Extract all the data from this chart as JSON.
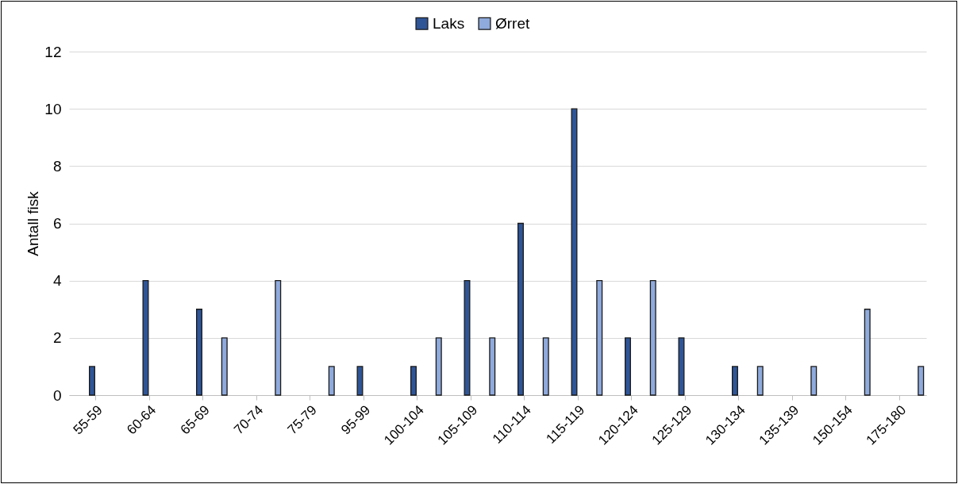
{
  "chart_data": {
    "type": "bar",
    "ylabel": "Antall fisk",
    "categories": [
      "55-59",
      "60-64",
      "65-69",
      "70-74",
      "75-79",
      "95-99",
      "100-104",
      "105-109",
      "110-114",
      "115-119",
      "120-124",
      "125-129",
      "130-134",
      "135-139",
      "150-154",
      "175-180"
    ],
    "series": [
      {
        "name": "Laks",
        "color": "#2f5597",
        "values": [
          1,
          4,
          3,
          0,
          0,
          1,
          1,
          4,
          6,
          10,
          2,
          2,
          1,
          0,
          0,
          0
        ]
      },
      {
        "name": "Ørret",
        "color": "#8faadc",
        "values": [
          0,
          0,
          2,
          4,
          1,
          0,
          2,
          2,
          2,
          4,
          4,
          0,
          1,
          1,
          3,
          1
        ]
      }
    ],
    "ylim": [
      0,
      12
    ],
    "yticks": [
      0,
      2,
      4,
      6,
      8,
      10,
      12
    ],
    "grid": "y",
    "legend": "top"
  }
}
